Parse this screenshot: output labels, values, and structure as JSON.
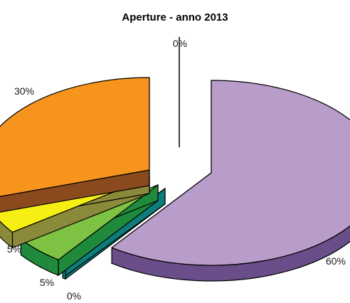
{
  "chart_data": {
    "type": "pie",
    "title": "Aperture - anno 2013",
    "slices": [
      {
        "label": "60%",
        "value": 60,
        "top_color": "#b89cc9",
        "side_color": "#6a4e8a"
      },
      {
        "label": "0%",
        "value": 0,
        "top_color": "#1b9c9a",
        "side_color": "#0d7d7b"
      },
      {
        "label": "5%",
        "value": 5,
        "top_color": "#7dc242",
        "side_color": "#1f8a3c"
      },
      {
        "label": "5%",
        "value": 5,
        "top_color": "#f7ef14",
        "side_color": "#8a8a3a"
      },
      {
        "label": "30%",
        "value": 30,
        "top_color": "#f7941d",
        "side_color": "#8a4a1e"
      },
      {
        "label": "0%",
        "value": 0,
        "top_color": "#ffffff",
        "side_color": "#000000"
      }
    ]
  }
}
